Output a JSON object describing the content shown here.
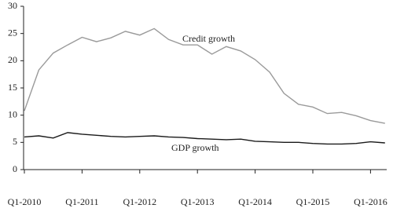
{
  "chart_data": {
    "type": "line",
    "categories": [
      "Q1-2010",
      null,
      null,
      null,
      "Q1-2011",
      null,
      null,
      null,
      "Q1-2012",
      null,
      null,
      null,
      "Q1-2013",
      null,
      null,
      null,
      "Q1-2014",
      null,
      null,
      null,
      "Q1-2015",
      null,
      null,
      null,
      "Q1-2016",
      null
    ],
    "series": [
      {
        "name": "Credit growth",
        "color": "#9a9a9a",
        "values": [
          10.8,
          18.3,
          21.4,
          22.9,
          24.3,
          23.5,
          24.2,
          25.4,
          24.7,
          25.9,
          23.9,
          22.9,
          22.9,
          21.2,
          22.6,
          21.8,
          20.2,
          17.9,
          14.0,
          12.0,
          11.5,
          10.3,
          10.5,
          9.9,
          9.0,
          8.5
        ]
      },
      {
        "name": "GDP growth",
        "color": "#1a1a1a",
        "values": [
          6.0,
          6.2,
          5.8,
          6.8,
          6.5,
          6.3,
          6.1,
          6.0,
          6.1,
          6.2,
          6.0,
          5.9,
          5.7,
          5.6,
          5.5,
          5.6,
          5.2,
          5.1,
          5.0,
          5.0,
          4.8,
          4.7,
          4.7,
          4.8,
          5.1,
          4.9
        ]
      }
    ],
    "ylim": [
      0,
      30
    ],
    "yticks": [
      0,
      5,
      10,
      15,
      20,
      25,
      30
    ],
    "grid": false
  }
}
